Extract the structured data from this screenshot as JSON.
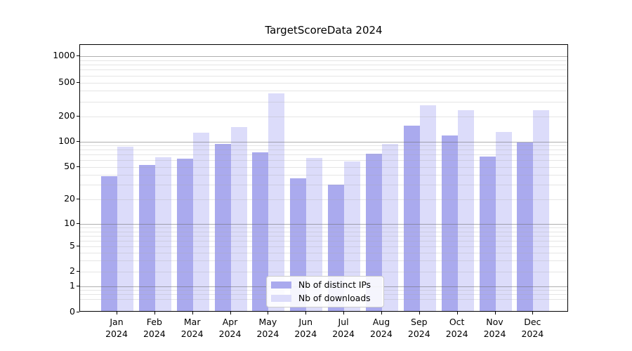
{
  "title": "TargetScoreData 2024",
  "chart_data": {
    "type": "bar",
    "title": "TargetScoreData 2024",
    "categories": [
      "Jan",
      "Feb",
      "Mar",
      "Apr",
      "May",
      "Jun",
      "Jul",
      "Aug",
      "Sep",
      "Oct",
      "Nov",
      "Dec"
    ],
    "category_year": "2024",
    "series": [
      {
        "name": "Nb of distinct IPs",
        "color": "#aaaaee",
        "values": [
          37,
          51,
          60,
          90,
          72,
          35,
          29,
          69,
          150,
          114,
          64,
          94
        ]
      },
      {
        "name": "Nb of downloads",
        "color": "#dcdcfa",
        "values": [
          84,
          63,
          123,
          145,
          360,
          61,
          56,
          90,
          260,
          228,
          126,
          228
        ]
      }
    ],
    "y_axis": {
      "scale": "symlog",
      "ticks": [
        0,
        1,
        2,
        5,
        10,
        20,
        50,
        100,
        200,
        500,
        1000
      ],
      "ylim_top": 1400
    },
    "xlabel": "",
    "ylabel": "",
    "grid": true,
    "legend_position": "lower center",
    "colors": {
      "major_gridline": "#b0b0b0",
      "minor_gridline": "#e8e8e8",
      "axis": "#000000",
      "background": "#ffffff"
    }
  }
}
